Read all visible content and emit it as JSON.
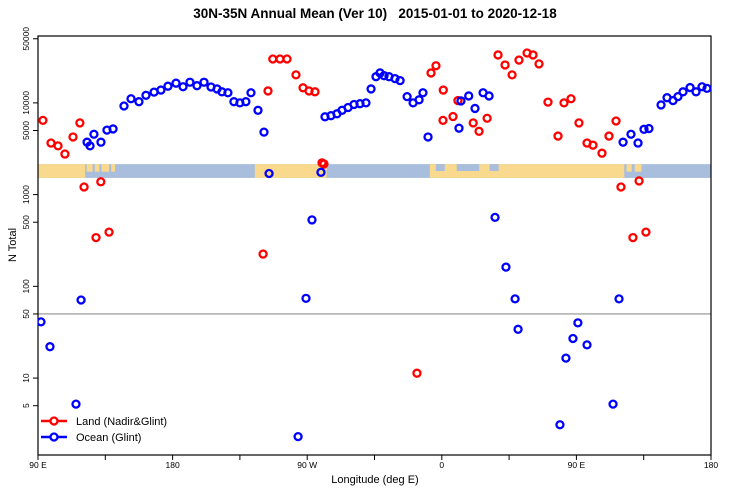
{
  "chart_data": {
    "type": "scatter",
    "title": "30N-35N Annual Mean (Ver 10)   2015-01-01 to 2020-12-18",
    "xlabel": "Longitude (deg E)",
    "ylabel": "N Total",
    "x_axis": {
      "min": 90,
      "max": 540,
      "unit": "deg E (unwrapped eastward from 90E)",
      "major_ticks": [
        {
          "lon": 90,
          "label": "90 E"
        },
        {
          "lon": 180,
          "label": "180"
        },
        {
          "lon": 270,
          "label": "90 W"
        },
        {
          "lon": 360,
          "label": "0"
        },
        {
          "lon": 450,
          "label": "90 E"
        },
        {
          "lon": 540,
          "label": "180"
        }
      ],
      "minor_ticks": [
        135,
        225,
        315,
        405,
        495
      ]
    },
    "y_axis": {
      "scale": "log",
      "min": 1.45,
      "max": 53600,
      "ticks": [
        5,
        10,
        50,
        100,
        500,
        1000,
        5000,
        10000,
        50000
      ]
    },
    "reference_line_y": 50,
    "grid": "off",
    "legend_position": "bottom-left",
    "colors": {
      "land": "#ff0000",
      "ocean": "#0000ff",
      "reference_line": "#909090",
      "strip_land": "#f8d98e",
      "strip_ocean": "#a8bedc"
    },
    "strip_map": {
      "n_top": 2150,
      "n_bottom": 1520,
      "land_color": "#f8d98e",
      "ocean_color": "#a8bedc",
      "land_full": [
        [
          90,
          121.5
        ],
        [
          235,
          283
        ],
        [
          352,
          482
        ]
      ],
      "land_top_patches": [
        [
          122.5,
          126.5
        ],
        [
          128,
          131
        ],
        [
          132.5,
          137.5
        ],
        [
          139,
          141.5
        ],
        [
          483.5,
          487
        ],
        [
          489,
          493.5
        ]
      ],
      "ocean_top_notches": [
        [
          356,
          362
        ],
        [
          370,
          385
        ],
        [
          392,
          398
        ]
      ]
    },
    "series": [
      {
        "id": "land",
        "name": "Land (Nadir&Glint)",
        "color": "#ff0000",
        "points": [
          [
            93.3,
            6450
          ],
          [
            98.7,
            3650
          ],
          [
            103.4,
            3400
          ],
          [
            108,
            2770
          ],
          [
            113.4,
            4250
          ],
          [
            118,
            6050
          ],
          [
            120.8,
            1210
          ],
          [
            132,
            1380
          ],
          [
            128.8,
            340
          ],
          [
            137.5,
            390
          ],
          [
            240.5,
            225
          ],
          [
            243.8,
            13500
          ],
          [
            247,
            30100
          ],
          [
            251.8,
            30100
          ],
          [
            256.5,
            30100
          ],
          [
            262.5,
            20200
          ],
          [
            267.2,
            14600
          ],
          [
            271.2,
            13500
          ],
          [
            275.2,
            13200
          ],
          [
            279.9,
            2220
          ],
          [
            281.2,
            2160
          ],
          [
            343.4,
            11.3
          ],
          [
            352.8,
            21200
          ],
          [
            356.1,
            25400
          ],
          [
            361,
            13800
          ],
          [
            360.8,
            6450
          ],
          [
            367.5,
            7100
          ],
          [
            370.8,
            10600
          ],
          [
            381,
            6050
          ],
          [
            384.9,
            4900
          ],
          [
            390.3,
            6800
          ],
          [
            397.6,
            33300
          ],
          [
            402.3,
            25900
          ],
          [
            407,
            20200
          ],
          [
            411.6,
            29300
          ],
          [
            417,
            35000
          ],
          [
            421,
            33300
          ],
          [
            425,
            26600
          ],
          [
            431,
            10200
          ],
          [
            437.7,
            4350
          ],
          [
            441.7,
            10000
          ],
          [
            446.4,
            11100
          ],
          [
            451.7,
            6050
          ],
          [
            457.1,
            3650
          ],
          [
            461.1,
            3460
          ],
          [
            467.1,
            2830
          ],
          [
            471.8,
            4350
          ],
          [
            476.5,
            6350
          ],
          [
            479.8,
            1210
          ],
          [
            491.9,
            1410
          ],
          [
            487.8,
            340
          ],
          [
            496.5,
            390
          ]
        ]
      },
      {
        "id": "ocean",
        "name": "Ocean (Glint)",
        "color": "#0000ff",
        "points": [
          [
            92,
            41
          ],
          [
            98,
            22
          ],
          [
            115.4,
            5.2
          ],
          [
            118.8,
            71
          ],
          [
            122.8,
            3730
          ],
          [
            127.4,
            4550
          ],
          [
            124.8,
            3400
          ],
          [
            132.1,
            3730
          ],
          [
            136.1,
            5050
          ],
          [
            140.2,
            5200
          ],
          [
            147.5,
            9250
          ],
          [
            152.2,
            11100
          ],
          [
            157.5,
            10300
          ],
          [
            162.2,
            12100
          ],
          [
            167.6,
            13100
          ],
          [
            172.2,
            13800
          ],
          [
            176.9,
            15200
          ],
          [
            182.3,
            16400
          ],
          [
            187,
            15000
          ],
          [
            191.6,
            16800
          ],
          [
            196.3,
            15400
          ],
          [
            201,
            16800
          ],
          [
            205.7,
            14900
          ],
          [
            209.7,
            14200
          ],
          [
            213,
            13200
          ],
          [
            217,
            12900
          ],
          [
            221,
            10300
          ],
          [
            225,
            10000
          ],
          [
            229,
            10300
          ],
          [
            232.4,
            12900
          ],
          [
            237.1,
            8300
          ],
          [
            241.1,
            4800
          ],
          [
            244.5,
            1700
          ],
          [
            263.9,
            2.3
          ],
          [
            269.2,
            74
          ],
          [
            273.2,
            530
          ],
          [
            279.2,
            1750
          ],
          [
            281.9,
            7050
          ],
          [
            285.9,
            7250
          ],
          [
            289.9,
            7600
          ],
          [
            293.3,
            8300
          ],
          [
            297.3,
            8900
          ],
          [
            301.3,
            9600
          ],
          [
            305.3,
            9800
          ],
          [
            309.3,
            10000
          ],
          [
            312.7,
            14200
          ],
          [
            316,
            19300
          ],
          [
            318.7,
            21200
          ],
          [
            321.4,
            19800
          ],
          [
            324.7,
            19300
          ],
          [
            328.7,
            18400
          ],
          [
            332.1,
            17500
          ],
          [
            336.8,
            11700
          ],
          [
            340.8,
            10000
          ],
          [
            344.8,
            10800
          ],
          [
            347.4,
            12900
          ],
          [
            350.8,
            4250
          ],
          [
            372.8,
            10500
          ],
          [
            371.5,
            5300
          ],
          [
            378,
            11900
          ],
          [
            382.2,
            8700
          ],
          [
            387.6,
            12900
          ],
          [
            391.6,
            11900
          ],
          [
            395.6,
            565
          ],
          [
            402.9,
            162
          ],
          [
            409,
            73
          ],
          [
            411,
            34
          ],
          [
            439,
            3.1
          ],
          [
            443,
            16.5
          ],
          [
            447.7,
            27
          ],
          [
            451,
            40
          ],
          [
            457.1,
            23
          ],
          [
            474.5,
            5.2
          ],
          [
            478.5,
            73
          ],
          [
            481.2,
            3730
          ],
          [
            486.5,
            4550
          ],
          [
            491.2,
            3650
          ],
          [
            495.2,
            5150
          ],
          [
            498.5,
            5250
          ],
          [
            506.6,
            9500
          ],
          [
            510.6,
            11400
          ],
          [
            514.6,
            10600
          ],
          [
            517.9,
            11700
          ],
          [
            521.3,
            13200
          ],
          [
            526,
            14700
          ],
          [
            530,
            13200
          ],
          [
            534,
            15000
          ],
          [
            537.3,
            14400
          ]
        ]
      }
    ]
  }
}
